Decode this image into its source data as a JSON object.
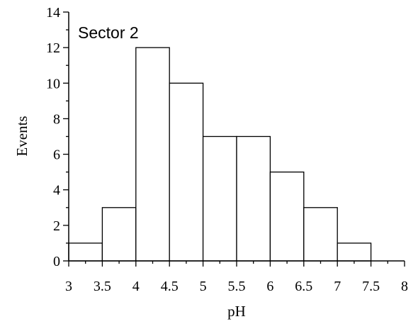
{
  "chart_data": {
    "type": "bar",
    "annotation": "Sector 2",
    "xlabel": "pH",
    "ylabel": "Events",
    "bin_edges": [
      3,
      3.5,
      4,
      4.5,
      5,
      5.5,
      6,
      6.5,
      7,
      7.5,
      8
    ],
    "values": [
      1,
      3,
      12,
      10,
      7,
      7,
      5,
      3,
      1,
      0
    ],
    "xlim": [
      3,
      8
    ],
    "ylim": [
      0,
      14
    ],
    "x_ticks": [
      "3",
      "3.5",
      "4",
      "4.5",
      "5",
      "5.5",
      "6",
      "6.5",
      "7",
      "7.5",
      "8"
    ],
    "y_ticks": [
      "0",
      "2",
      "4",
      "6",
      "8",
      "10",
      "12",
      "14"
    ],
    "grid": false,
    "colors": {
      "bar_fill": "#ffffff",
      "bar_stroke": "#000000"
    }
  }
}
